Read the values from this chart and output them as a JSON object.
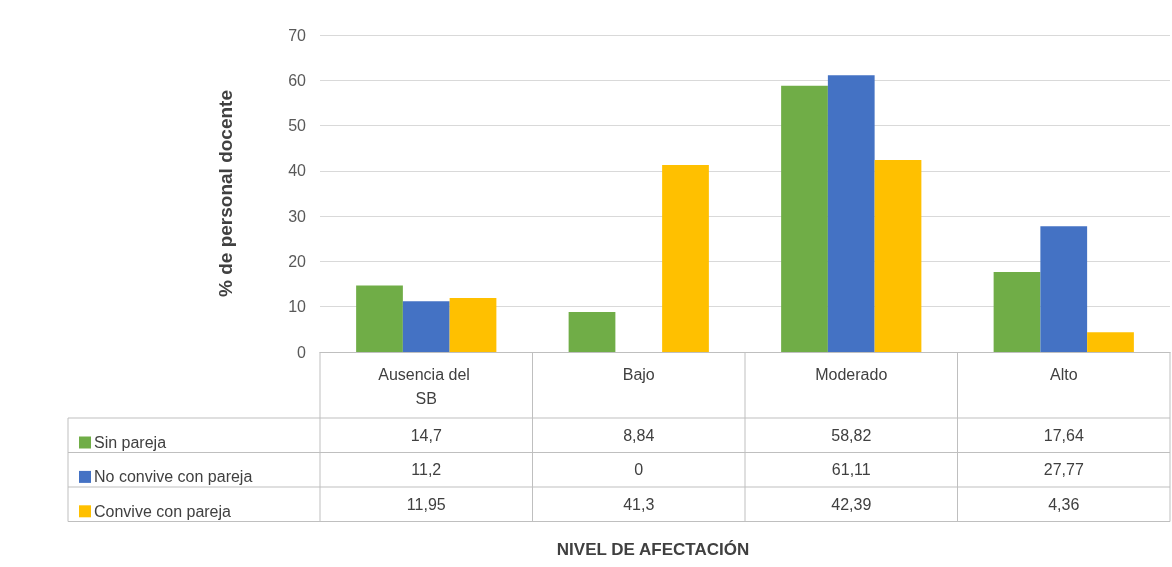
{
  "chart_data": {
    "type": "bar",
    "ylabel": "% de personal docente",
    "annotations": [
      "NIVEL DE AFECTACIÓN"
    ],
    "categories": [
      "Ausencia del SB",
      "Bajo",
      "Moderado",
      "Alto"
    ],
    "series": [
      {
        "name": "Sin pareja",
        "color": "#70ad47",
        "values": [
          14.7,
          8.84,
          58.82,
          17.64
        ],
        "value_labels": [
          "14,7",
          "8,84",
          "58,82",
          "17,64"
        ]
      },
      {
        "name": "No convive con pareja",
        "color": "#4472c4",
        "values": [
          11.2,
          0,
          61.11,
          27.77
        ],
        "value_labels": [
          "11,2",
          "0",
          "61,11",
          "27,77"
        ]
      },
      {
        "name": "Convive con pareja",
        "color": "#ffc000",
        "values": [
          11.95,
          41.3,
          42.39,
          4.36
        ],
        "value_labels": [
          "11,95",
          "41,3",
          "42,39",
          "4,36"
        ]
      }
    ],
    "ylim": [
      0,
      70
    ],
    "yticks": [
      0,
      10,
      20,
      30,
      40,
      50,
      60,
      70
    ],
    "grid": "y",
    "legend": "bottom"
  }
}
